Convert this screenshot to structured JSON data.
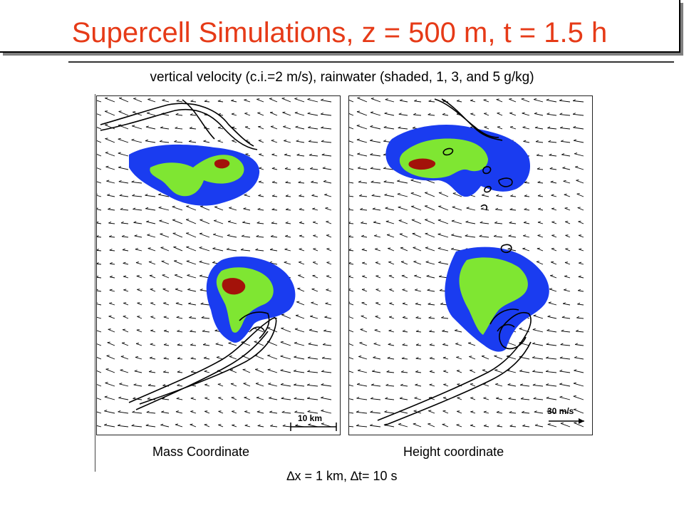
{
  "title": "Supercell Simulations, z = 500 m, t = 1.5 h",
  "subtitle": "vertical velocity (c.i.=2 m/s), rainwater (shaded, 1, 3, and 5 g/kg)",
  "panels": [
    {
      "label": "Mass Coordinate",
      "scale_label": "10 km"
    },
    {
      "label": "Height coordinate",
      "scale_label": "30 m/s"
    }
  ],
  "footer": "∆x = 1 km, ∆t= 10 s",
  "colors": {
    "title": "#e63a17",
    "rain_1": "#1a3cf0",
    "rain_3": "#7fe632",
    "rain_5": "#a3120a",
    "contour": "#000000",
    "vector": "#000000"
  }
}
